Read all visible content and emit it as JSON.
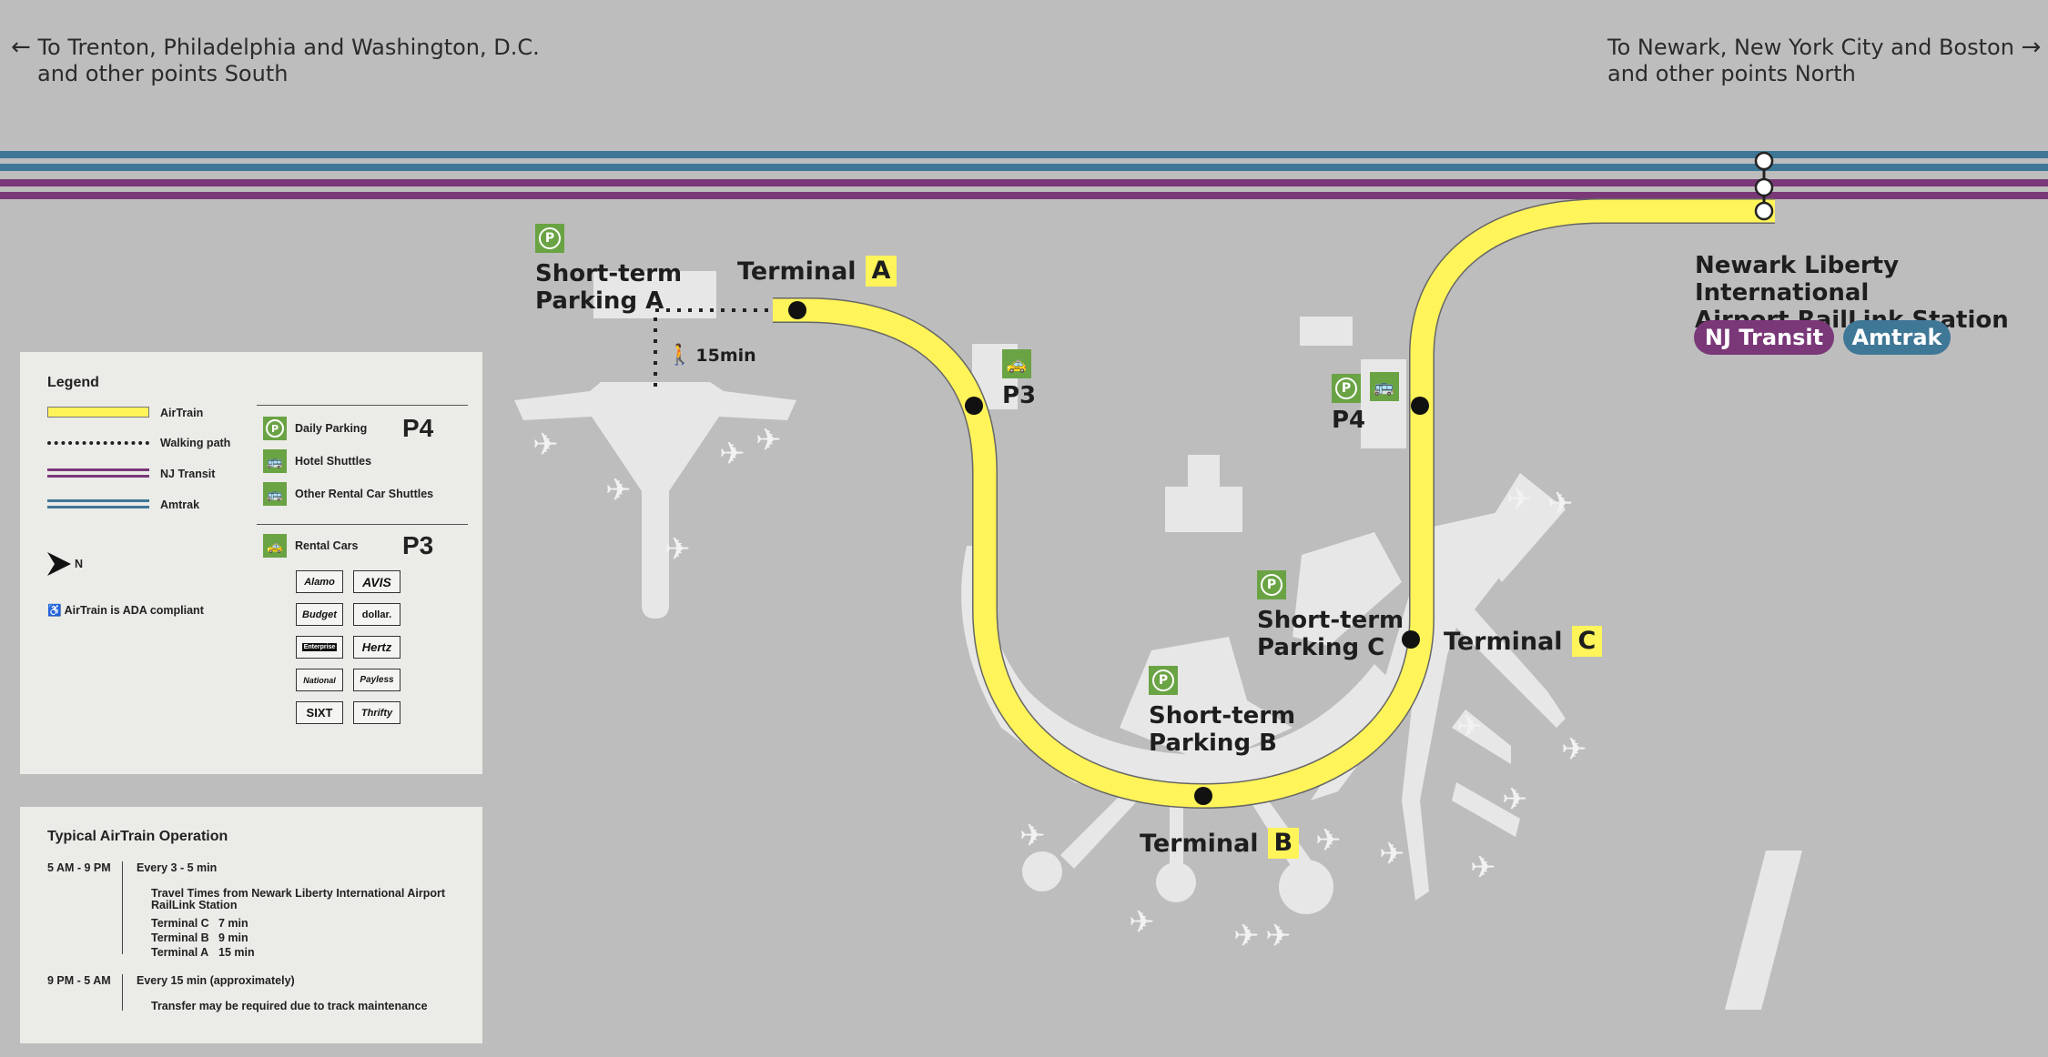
{
  "directions": {
    "south_line1": "To Trenton, Philadelphia and Washington, D.C.",
    "south_line2": "and other points South",
    "north_line1": "To Newark, New York City and Boston",
    "north_line2": "and other points North",
    "left_arrow": "←",
    "right_arrow": "→"
  },
  "terminals": {
    "a": {
      "label": "Terminal",
      "letter": "A"
    },
    "b": {
      "label": "Terminal",
      "letter": "B"
    },
    "c": {
      "label": "Terminal",
      "letter": "C"
    }
  },
  "parking": {
    "a_line1": "Short-term",
    "a_line2": "Parking A",
    "b_line1": "Short-term",
    "b_line2": "Parking B",
    "c_line1": "Short-term",
    "c_line2": "Parking C",
    "p3": "P3",
    "p4": "P4",
    "parking_glyph": "P"
  },
  "walk": {
    "time": "15min"
  },
  "station": {
    "line1": "Newark Liberty International",
    "line2": "Airport RailLink Station",
    "nj_transit": "NJ Transit",
    "amtrak": "Amtrak"
  },
  "colors": {
    "airtrain": "#fff45a",
    "nj_transit": "#7a3878",
    "amtrak": "#3f7797",
    "parking_green": "#6aa344",
    "background": "#bdbdbd",
    "airport_shapes": "#e7e7e7"
  },
  "legend": {
    "title": "Legend",
    "airtrain": "AirTrain",
    "walking": "Walking path",
    "nj_transit": "NJ Transit",
    "amtrak": "Amtrak",
    "north": "N",
    "ada": "AirTrain is ADA compliant",
    "daily_parking": "Daily Parking",
    "hotel_shuttles": "Hotel Shuttles",
    "other_shuttles": "Other Rental Car Shuttles",
    "rental_cars": "Rental Cars",
    "p4": "P4",
    "p3": "P3",
    "rental_brands": [
      "Alamo",
      "AVIS",
      "Budget",
      "dollar.",
      "Enterprise",
      "Hertz",
      "National",
      "Payless",
      "SIXT",
      "Thrifty"
    ]
  },
  "operation": {
    "title": "Typical AirTrain Operation",
    "day_hours": "5 AM - 9 PM",
    "day_freq": "Every 3 - 5 min",
    "travel_title_1": "Travel Times from Newark Liberty International Airport",
    "travel_title_2": "RailLink Station",
    "times": [
      {
        "terminal": "Terminal C",
        "time": "7 min"
      },
      {
        "terminal": "Terminal B",
        "time": "9 min"
      },
      {
        "terminal": "Terminal A",
        "time": "15 min"
      }
    ],
    "night_hours": "9 PM - 5 AM",
    "night_freq": "Every 15 min (approximately)",
    "night_note": "Transfer may be required due to track maintenance"
  }
}
